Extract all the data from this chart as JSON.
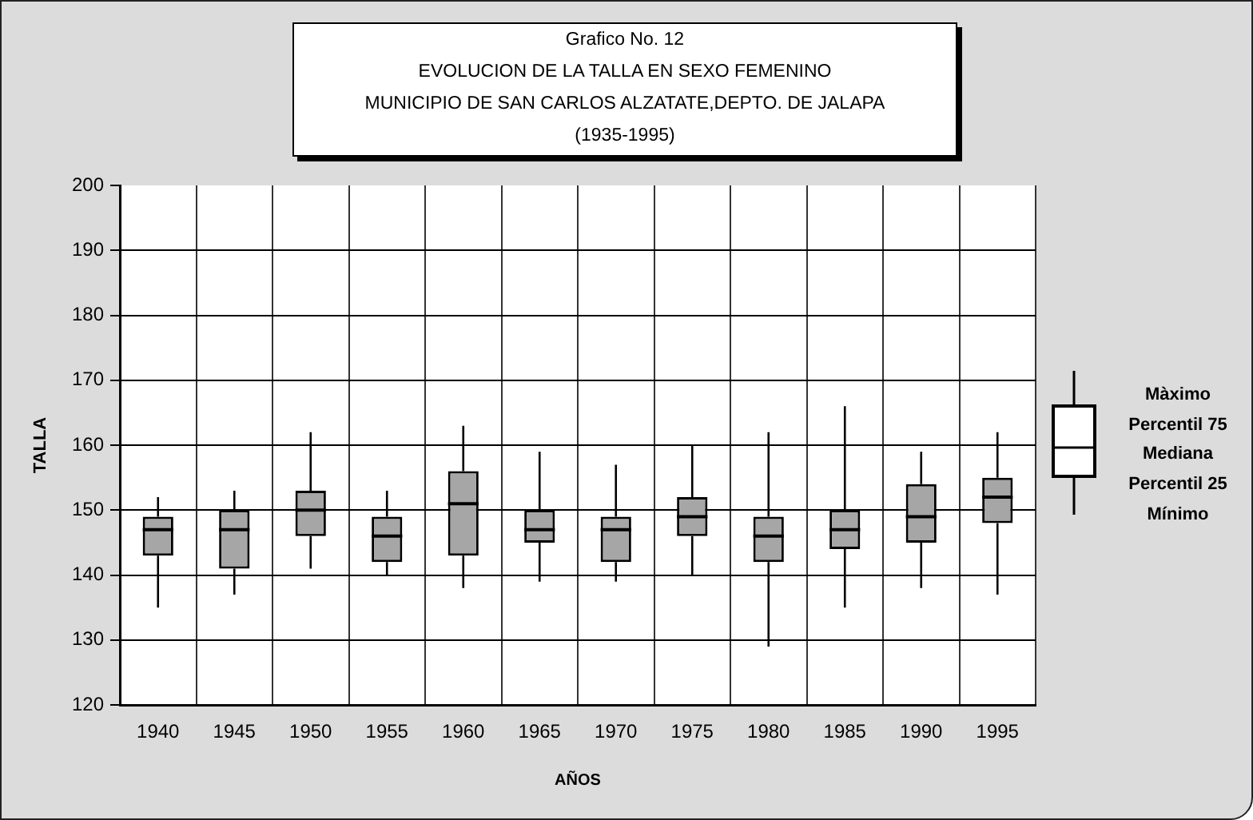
{
  "chart_data": {
    "type": "box",
    "title": "Grafico No. 12",
    "subtitle": "EVOLUCION DE LA TALLA EN SEXO FEMENINO\nMUNICIPIO DE SAN CARLOS ALZATATE,DEPTO. DE JALAPA\n(1935-1995)",
    "xlabel": "AÑOS",
    "ylabel": "TALLA",
    "annotations": [
      "Màximo",
      "Percentil 75",
      "Mediana",
      "Percentil 25",
      "Mínimo"
    ],
    "categories": [
      "1940",
      "1945",
      "1950",
      "1955",
      "1960",
      "1965",
      "1970",
      "1975",
      "1980",
      "1985",
      "1990",
      "1995"
    ],
    "boxes": [
      {
        "low": 135,
        "q1": 143,
        "median": 147,
        "q3": 149,
        "high": 152
      },
      {
        "low": 137,
        "q1": 141,
        "median": 147,
        "q3": 150,
        "high": 153
      },
      {
        "low": 141,
        "q1": 146,
        "median": 150,
        "q3": 153,
        "high": 162
      },
      {
        "low": 140,
        "q1": 142,
        "median": 146,
        "q3": 149,
        "high": 153
      },
      {
        "low": 138,
        "q1": 143,
        "median": 151,
        "q3": 156,
        "high": 163
      },
      {
        "low": 139,
        "q1": 145,
        "median": 147,
        "q3": 150,
        "high": 159
      },
      {
        "low": 139,
        "q1": 142,
        "median": 147,
        "q3": 149,
        "high": 157
      },
      {
        "low": 140,
        "q1": 146,
        "median": 149,
        "q3": 152,
        "high": 160
      },
      {
        "low": 129,
        "q1": 142,
        "median": 146,
        "q3": 149,
        "high": 162
      },
      {
        "low": 135,
        "q1": 144,
        "median": 147,
        "q3": 150,
        "high": 166
      },
      {
        "low": 138,
        "q1": 145,
        "median": 149,
        "q3": 154,
        "high": 159
      },
      {
        "low": 137,
        "q1": 148,
        "median": 152,
        "q3": 155,
        "high": 162
      }
    ],
    "color": "#000000",
    "ylim": [
      120,
      200
    ],
    "yticks": [
      120,
      130,
      140,
      150,
      160,
      170,
      180,
      190,
      200
    ],
    "grid": true
  }
}
